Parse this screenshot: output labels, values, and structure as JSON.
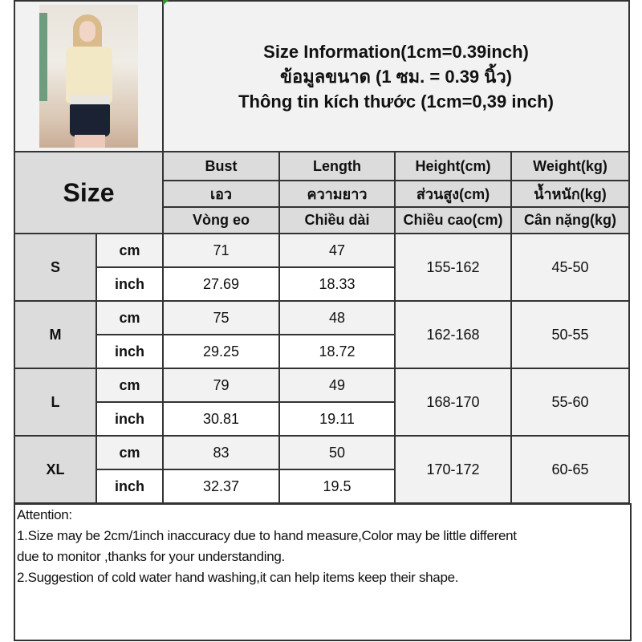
{
  "title": {
    "line1": "Size Information(1cm=0.39inch)",
    "line2": "ข้อมูลขนาด (1 ซม. = 0.39 นิ้ว)",
    "line3": "Thông tin kích thước (1cm=0,39 inch)"
  },
  "header": {
    "size_label": "Size",
    "columns": [
      {
        "en": "Bust",
        "th": "เอว",
        "vi": "Vòng eo"
      },
      {
        "en": "Length",
        "th": "ความยาว",
        "vi": "Chiều dài"
      },
      {
        "en": "Height(cm)",
        "th": "ส่วนสูง(cm)",
        "vi": "Chiều cao(cm)"
      },
      {
        "en": "Weight(kg)",
        "th": "น้ำหนัก(kg)",
        "vi": "Cân nặng(kg)"
      }
    ]
  },
  "units": {
    "cm": "cm",
    "inch": "inch"
  },
  "sizes": [
    {
      "size": "S",
      "bust_cm": "71",
      "length_cm": "47",
      "bust_in": "27.69",
      "length_in": "18.33",
      "height": "155-162",
      "weight": "45-50"
    },
    {
      "size": "M",
      "bust_cm": "75",
      "length_cm": "48",
      "bust_in": "29.25",
      "length_in": "18.72",
      "height": "162-168",
      "weight": "50-55"
    },
    {
      "size": "L",
      "bust_cm": "79",
      "length_cm": "49",
      "bust_in": "30.81",
      "length_in": "19.11",
      "height": "168-170",
      "weight": "55-60"
    },
    {
      "size": "XL",
      "bust_cm": "83",
      "length_cm": "50",
      "bust_in": "32.37",
      "length_in": "19.5",
      "height": "170-172",
      "weight": "60-65"
    }
  ],
  "notes": {
    "heading": "Attention:",
    "line1a": "1.Size may be 2cm/1inch inaccuracy due to hand measure,Color may be little different",
    "line1b": "due to monitor ,thanks for your understanding.",
    "line2": "2.Suggestion of cold water hand washing,it can help items keep their shape."
  }
}
